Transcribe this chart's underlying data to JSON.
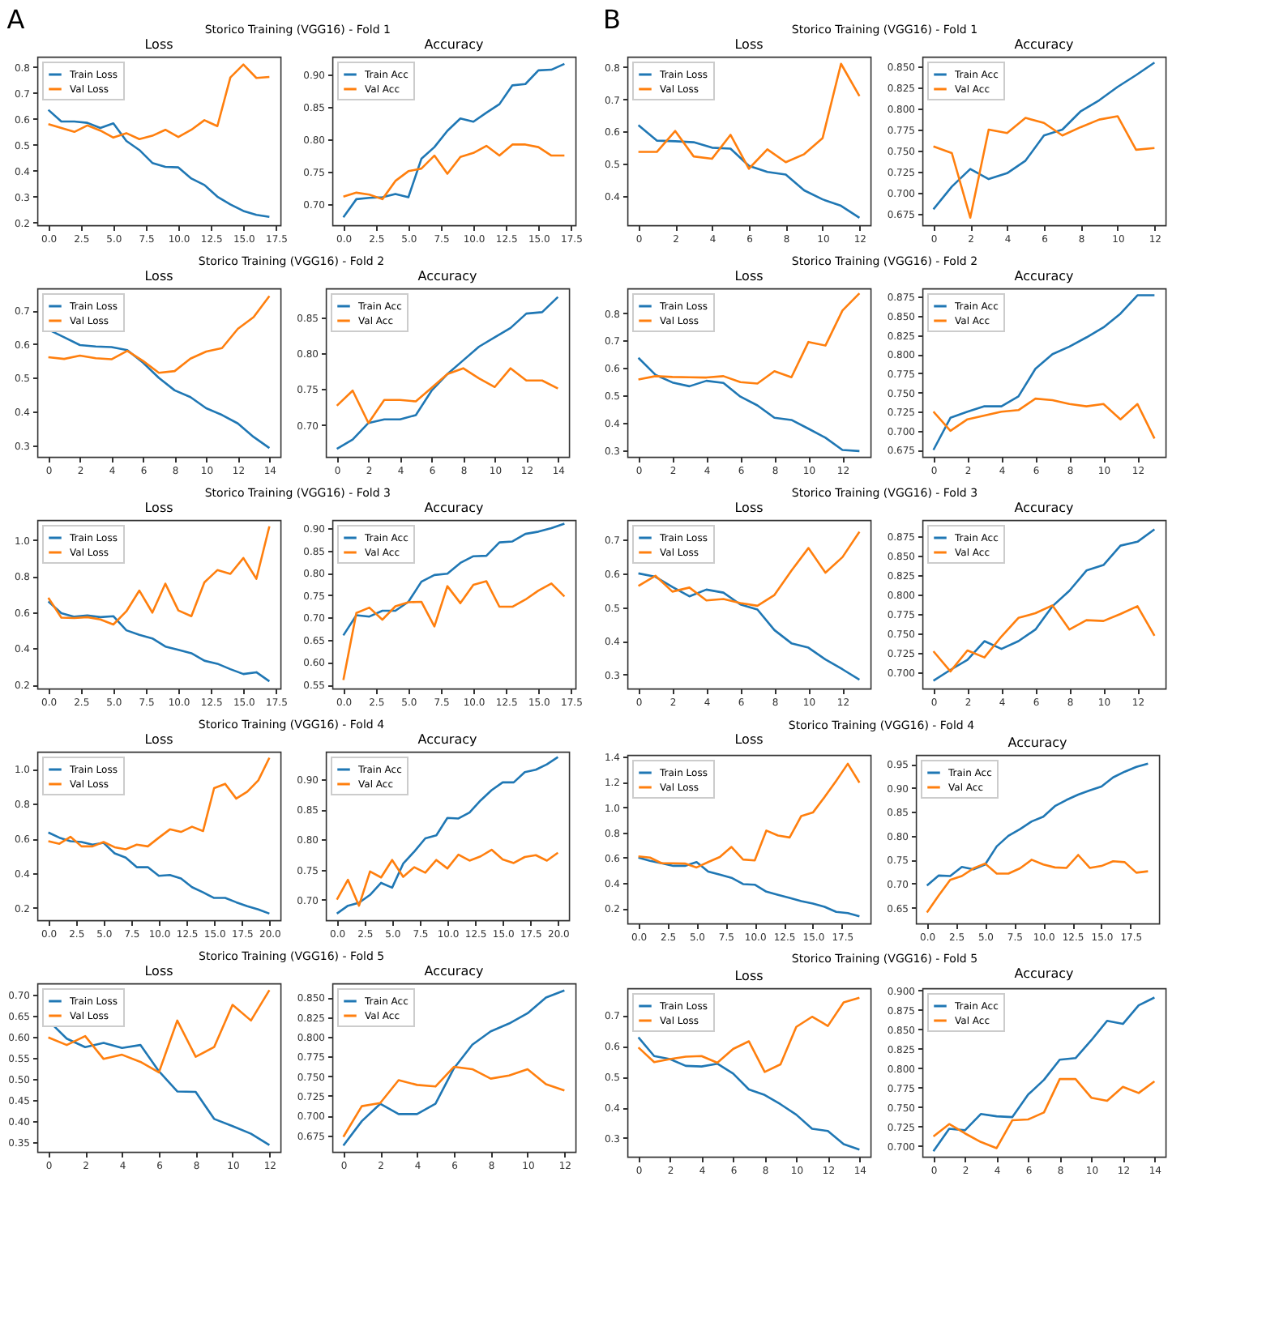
{
  "chart_data": [
    {
      "type": "line",
      "title": "Loss",
      "annotations": [
        "A",
        "Storico Training (VGG16) - Fold 1"
      ],
      "legend": "top left",
      "x": [
        0,
        1,
        2,
        3,
        4,
        5,
        6,
        7,
        8,
        9,
        10,
        11,
        12,
        13,
        14,
        15,
        16,
        17
      ],
      "xlim": [
        -0.85,
        17.85
      ],
      "xticks": [
        {
          "value": 0,
          "label": "0.0"
        },
        2.5,
        {
          "value": 5,
          "label": "5.0"
        },
        7.5,
        {
          "value": 10,
          "label": "10.0"
        },
        12.5,
        {
          "value": 15,
          "label": "15.0"
        },
        17.5
      ],
      "ylim": [
        0.19,
        0.84
      ],
      "yticks": [
        0.2,
        0.3,
        0.4,
        0.5,
        0.6,
        0.7,
        0.8
      ],
      "series": [
        {
          "name": "Train Loss",
          "color": "#1f77b4",
          "values": [
            0.635,
            0.59,
            0.59,
            0.585,
            0.565,
            0.583,
            0.515,
            0.48,
            0.43,
            0.415,
            0.413,
            0.37,
            0.345,
            0.3,
            0.27,
            0.245,
            0.23,
            0.222
          ]
        },
        {
          "name": "Val Loss",
          "color": "#ff7f0e",
          "values": [
            0.58,
            0.565,
            0.55,
            0.575,
            0.555,
            0.528,
            0.545,
            0.522,
            0.535,
            0.558,
            0.53,
            0.558,
            0.595,
            0.572,
            0.76,
            0.81,
            0.758,
            0.762
          ]
        }
      ]
    },
    {
      "type": "line",
      "title": "Accuracy",
      "legend": "top left",
      "x": [
        0,
        1,
        2,
        3,
        4,
        5,
        6,
        7,
        8,
        9,
        10,
        11,
        12,
        13,
        14,
        15,
        16,
        17
      ],
      "xlim": [
        -0.85,
        17.85
      ],
      "xticks": [
        {
          "value": 0,
          "label": "0.0"
        },
        2.5,
        {
          "value": 5,
          "label": "5.0"
        },
        7.5,
        {
          "value": 10,
          "label": "10.0"
        },
        12.5,
        {
          "value": 15,
          "label": "15.0"
        },
        17.5
      ],
      "ylim": [
        0.668,
        0.927
      ],
      "yticks": [
        {
          "value": 0.7,
          "label": "0.70"
        },
        0.75,
        {
          "value": 0.8,
          "label": "0.80"
        },
        0.85,
        {
          "value": 0.9,
          "label": "0.90"
        }
      ],
      "series": [
        {
          "name": "Train Acc",
          "color": "#1f77b4",
          "values": [
            0.68,
            0.708,
            0.71,
            0.711,
            0.716,
            0.711,
            0.77,
            0.788,
            0.813,
            0.832,
            0.827,
            0.841,
            0.854,
            0.883,
            0.885,
            0.906,
            0.907,
            0.916
          ]
        },
        {
          "name": "Val Acc",
          "color": "#ff7f0e",
          "values": [
            0.712,
            0.718,
            0.715,
            0.708,
            0.736,
            0.751,
            0.755,
            0.775,
            0.747,
            0.773,
            0.779,
            0.79,
            0.775,
            0.792,
            0.792,
            0.788,
            0.775,
            0.775
          ]
        }
      ]
    },
    {
      "type": "line",
      "title": "Loss",
      "annotations": [
        "B",
        "Storico Training (VGG16) - Fold 1"
      ],
      "legend": "top left",
      "x": [
        0,
        1,
        2,
        3,
        4,
        5,
        6,
        7,
        8,
        9,
        10,
        11,
        12
      ],
      "xlim": [
        -0.6,
        12.6
      ],
      "xticks": [
        0,
        2,
        4,
        6,
        8,
        10,
        12
      ],
      "ylim": [
        0.31,
        0.832
      ],
      "yticks": [
        0.4,
        0.5,
        0.6,
        0.7,
        0.8
      ],
      "series": [
        {
          "name": "Train Loss",
          "color": "#1f77b4",
          "values": [
            0.62,
            0.572,
            0.57,
            0.567,
            0.55,
            0.547,
            0.494,
            0.475,
            0.467,
            0.418,
            0.39,
            0.37,
            0.333
          ]
        },
        {
          "name": "Val Loss",
          "color": "#ff7f0e",
          "values": [
            0.537,
            0.537,
            0.602,
            0.523,
            0.516,
            0.59,
            0.485,
            0.545,
            0.505,
            0.53,
            0.58,
            0.81,
            0.71
          ]
        }
      ]
    },
    {
      "type": "line",
      "title": "Accuracy",
      "legend": "top left",
      "x": [
        0,
        1,
        2,
        3,
        4,
        5,
        6,
        7,
        8,
        9,
        10,
        11,
        12
      ],
      "xlim": [
        -0.6,
        12.6
      ],
      "xticks": [
        0,
        2,
        4,
        6,
        8,
        10,
        12
      ],
      "ylim": [
        0.661,
        0.862
      ],
      "yticks": [
        0.675,
        {
          "value": 0.7,
          "label": "0.700"
        },
        0.725,
        {
          "value": 0.75,
          "label": "0.750"
        },
        0.775,
        {
          "value": 0.8,
          "label": "0.800"
        },
        0.825,
        {
          "value": 0.85,
          "label": "0.850"
        }
      ],
      "series": [
        {
          "name": "Train Acc",
          "color": "#1f77b4",
          "values": [
            0.68,
            0.707,
            0.728,
            0.716,
            0.723,
            0.738,
            0.768,
            0.775,
            0.797,
            0.81,
            0.826,
            0.84,
            0.855
          ]
        },
        {
          "name": "Val Acc",
          "color": "#ff7f0e",
          "values": [
            0.755,
            0.747,
            0.67,
            0.775,
            0.771,
            0.789,
            0.783,
            0.768,
            0.778,
            0.787,
            0.791,
            0.751,
            0.753
          ]
        }
      ]
    },
    {
      "type": "line",
      "title": "Loss",
      "annotations": [
        "Storico Training (VGG16) - Fold 2"
      ],
      "legend": "top left",
      "x": [
        0,
        1,
        2,
        3,
        4,
        5,
        6,
        7,
        8,
        9,
        10,
        11,
        12,
        13,
        14
      ],
      "xlim": [
        -0.7,
        14.7
      ],
      "xticks": [
        0,
        2,
        4,
        6,
        8,
        10,
        12,
        14
      ],
      "ylim": [
        0.266,
        0.765
      ],
      "yticks": [
        0.3,
        0.4,
        0.5,
        0.6,
        0.7
      ],
      "series": [
        {
          "name": "Train Loss",
          "color": "#1f77b4",
          "values": [
            0.643,
            0.62,
            0.597,
            0.593,
            0.591,
            0.582,
            0.545,
            0.5,
            0.463,
            0.443,
            0.41,
            0.39,
            0.365,
            0.325,
            0.292
          ]
        },
        {
          "name": "Val Loss",
          "color": "#ff7f0e",
          "values": [
            0.561,
            0.556,
            0.566,
            0.558,
            0.555,
            0.58,
            0.55,
            0.515,
            0.52,
            0.557,
            0.578,
            0.588,
            0.645,
            0.68,
            0.742
          ]
        }
      ]
    },
    {
      "type": "line",
      "title": "Accuracy",
      "legend": "top left",
      "x": [
        0,
        1,
        2,
        3,
        4,
        5,
        6,
        7,
        8,
        9,
        10,
        11,
        12,
        13,
        14
      ],
      "xlim": [
        -0.7,
        14.7
      ],
      "xticks": [
        0,
        2,
        4,
        6,
        8,
        10,
        12,
        14
      ],
      "ylim": [
        0.656,
        0.89
      ],
      "yticks": [
        {
          "value": 0.7,
          "label": "0.70"
        },
        0.75,
        {
          "value": 0.8,
          "label": "0.80"
        },
        0.85
      ],
      "series": [
        {
          "name": "Train Acc",
          "color": "#1f77b4",
          "values": [
            0.667,
            0.68,
            0.703,
            0.708,
            0.708,
            0.714,
            0.748,
            0.771,
            0.79,
            0.809,
            0.822,
            0.835,
            0.855,
            0.857,
            0.878
          ]
        },
        {
          "name": "Val Acc",
          "color": "#ff7f0e",
          "values": [
            0.727,
            0.748,
            0.703,
            0.735,
            0.735,
            0.733,
            0.752,
            0.771,
            0.779,
            0.765,
            0.753,
            0.779,
            0.762,
            0.762,
            0.751
          ]
        }
      ]
    },
    {
      "type": "line",
      "title": "Loss",
      "annotations": [
        "Storico Training (VGG16) - Fold 2"
      ],
      "legend": "top left",
      "x": [
        0,
        1,
        2,
        3,
        4,
        5,
        6,
        7,
        8,
        9,
        10,
        11,
        12,
        13
      ],
      "xlim": [
        -0.65,
        13.65
      ],
      "xticks": [
        0,
        2,
        4,
        6,
        8,
        10,
        12
      ],
      "ylim": [
        0.275,
        0.891
      ],
      "yticks": [
        0.3,
        0.4,
        0.5,
        0.6,
        0.7,
        0.8
      ],
      "series": [
        {
          "name": "Train Loss",
          "color": "#1f77b4",
          "values": [
            0.637,
            0.575,
            0.547,
            0.533,
            0.553,
            0.545,
            0.495,
            0.463,
            0.418,
            0.41,
            0.378,
            0.345,
            0.3,
            0.296
          ]
        },
        {
          "name": "Val Loss",
          "color": "#ff7f0e",
          "values": [
            0.558,
            0.57,
            0.567,
            0.566,
            0.565,
            0.57,
            0.548,
            0.543,
            0.588,
            0.566,
            0.695,
            0.682,
            0.81,
            0.873
          ]
        }
      ]
    },
    {
      "type": "line",
      "title": "Accuracy",
      "legend": "top left",
      "x": [
        0,
        1,
        2,
        3,
        4,
        5,
        6,
        7,
        8,
        9,
        10,
        11,
        12,
        13
      ],
      "xlim": [
        -0.65,
        13.65
      ],
      "xticks": [
        0,
        2,
        4,
        6,
        8,
        10,
        12
      ],
      "ylim": [
        0.666,
        0.886
      ],
      "yticks": [
        0.675,
        {
          "value": 0.7,
          "label": "0.700"
        },
        0.725,
        {
          "value": 0.75,
          "label": "0.750"
        },
        0.775,
        {
          "value": 0.8,
          "label": "0.800"
        },
        0.825,
        {
          "value": 0.85,
          "label": "0.850"
        },
        0.875
      ],
      "series": [
        {
          "name": "Train Acc",
          "color": "#1f77b4",
          "values": [
            0.675,
            0.717,
            0.725,
            0.732,
            0.732,
            0.745,
            0.781,
            0.8,
            0.81,
            0.822,
            0.835,
            0.853,
            0.877,
            0.877
          ]
        },
        {
          "name": "Val Acc",
          "color": "#ff7f0e",
          "values": [
            0.725,
            0.7,
            0.715,
            0.72,
            0.725,
            0.727,
            0.742,
            0.74,
            0.735,
            0.732,
            0.735,
            0.715,
            0.735,
            0.69
          ]
        }
      ]
    },
    {
      "type": "line",
      "title": "Loss",
      "annotations": [
        "Storico Training (VGG16) - Fold 3"
      ],
      "legend": "top left",
      "x": [
        0,
        1,
        2,
        3,
        4,
        5,
        6,
        7,
        8,
        9,
        10,
        11,
        12,
        13,
        14,
        15,
        16,
        17
      ],
      "xlim": [
        -0.85,
        17.85
      ],
      "xticks": [
        {
          "value": 0,
          "label": "0.0"
        },
        2.5,
        {
          "value": 5,
          "label": "5.0"
        },
        7.5,
        {
          "value": 10,
          "label": "10.0"
        },
        12.5,
        {
          "value": 15,
          "label": "15.0"
        },
        17.5
      ],
      "ylim": [
        0.178,
        1.11
      ],
      "yticks": [
        0.2,
        0.4,
        0.6,
        0.8,
        {
          "value": 1,
          "label": "1.0"
        }
      ],
      "series": [
        {
          "name": "Train Loss",
          "color": "#1f77b4",
          "values": [
            0.66,
            0.595,
            0.575,
            0.582,
            0.573,
            0.578,
            0.5,
            0.475,
            0.455,
            0.41,
            0.392,
            0.373,
            0.332,
            0.315,
            0.285,
            0.258,
            0.268,
            0.218
          ]
        },
        {
          "name": "Val Loss",
          "color": "#ff7f0e",
          "values": [
            0.68,
            0.57,
            0.568,
            0.573,
            0.56,
            0.532,
            0.605,
            0.72,
            0.598,
            0.758,
            0.61,
            0.578,
            0.765,
            0.833,
            0.812,
            0.9,
            0.785,
            1.075
          ]
        }
      ]
    },
    {
      "type": "line",
      "title": "Accuracy",
      "legend": "top left",
      "x": [
        0,
        1,
        2,
        3,
        4,
        5,
        6,
        7,
        8,
        9,
        10,
        11,
        12,
        13,
        14,
        15,
        16,
        17
      ],
      "xlim": [
        -0.85,
        17.85
      ],
      "xticks": [
        {
          "value": 0,
          "label": "0.0"
        },
        2.5,
        {
          "value": 5,
          "label": "5.0"
        },
        7.5,
        {
          "value": 10,
          "label": "10.0"
        },
        12.5,
        {
          "value": 15,
          "label": "15.0"
        },
        17.5
      ],
      "ylim": [
        0.541,
        0.918
      ],
      "yticks": [
        0.55,
        {
          "value": 0.6,
          "label": "0.60"
        },
        0.65,
        {
          "value": 0.7,
          "label": "0.70"
        },
        0.75,
        {
          "value": 0.8,
          "label": "0.80"
        },
        0.85,
        {
          "value": 0.9,
          "label": "0.90"
        }
      ],
      "series": [
        {
          "name": "Train Acc",
          "color": "#1f77b4",
          "values": [
            0.66,
            0.705,
            0.702,
            0.715,
            0.715,
            0.735,
            0.78,
            0.795,
            0.798,
            0.822,
            0.837,
            0.838,
            0.868,
            0.87,
            0.887,
            0.892,
            0.9,
            0.91
          ]
        },
        {
          "name": "Val Acc",
          "color": "#ff7f0e",
          "values": [
            0.56,
            0.71,
            0.722,
            0.695,
            0.725,
            0.734,
            0.735,
            0.68,
            0.77,
            0.732,
            0.773,
            0.781,
            0.724,
            0.724,
            0.74,
            0.76,
            0.776,
            0.747
          ]
        }
      ]
    },
    {
      "type": "line",
      "title": "Loss",
      "annotations": [
        "Storico Training (VGG16) - Fold 3"
      ],
      "legend": "top left",
      "x": [
        0,
        1,
        2,
        3,
        4,
        5,
        6,
        7,
        8,
        9,
        10,
        11,
        12,
        13
      ],
      "xlim": [
        -0.65,
        13.65
      ],
      "xticks": [
        0,
        2,
        4,
        6,
        8,
        10,
        12
      ],
      "ylim": [
        0.259,
        0.758
      ],
      "yticks": [
        0.3,
        0.4,
        0.5,
        0.6,
        0.7
      ],
      "series": [
        {
          "name": "Train Loss",
          "color": "#1f77b4",
          "values": [
            0.6,
            0.59,
            0.56,
            0.532,
            0.552,
            0.543,
            0.508,
            0.493,
            0.432,
            0.393,
            0.38,
            0.345,
            0.316,
            0.285
          ]
        },
        {
          "name": "Val Loss",
          "color": "#ff7f0e",
          "values": [
            0.563,
            0.593,
            0.546,
            0.558,
            0.52,
            0.524,
            0.512,
            0.504,
            0.536,
            0.608,
            0.675,
            0.602,
            0.648,
            0.723
          ]
        }
      ]
    },
    {
      "type": "line",
      "title": "Accuracy",
      "legend": "top left",
      "x": [
        0,
        1,
        2,
        3,
        4,
        5,
        6,
        7,
        8,
        9,
        10,
        11,
        12,
        13
      ],
      "xlim": [
        -0.65,
        13.65
      ],
      "xticks": [
        0,
        2,
        4,
        6,
        8,
        10,
        12
      ],
      "ylim": [
        0.679,
        0.896
      ],
      "yticks": [
        {
          "value": 0.7,
          "label": "0.700"
        },
        0.725,
        {
          "value": 0.75,
          "label": "0.750"
        },
        0.775,
        {
          "value": 0.8,
          "label": "0.800"
        },
        0.825,
        {
          "value": 0.85,
          "label": "0.850"
        },
        0.875
      ],
      "series": [
        {
          "name": "Train Acc",
          "color": "#1f77b4",
          "values": [
            0.689,
            0.703,
            0.716,
            0.74,
            0.73,
            0.74,
            0.755,
            0.785,
            0.805,
            0.831,
            0.838,
            0.863,
            0.868,
            0.884
          ]
        },
        {
          "name": "Val Acc",
          "color": "#ff7f0e",
          "values": [
            0.727,
            0.701,
            0.728,
            0.719,
            0.746,
            0.77,
            0.776,
            0.786,
            0.755,
            0.767,
            0.766,
            0.775,
            0.785,
            0.747
          ]
        }
      ]
    },
    {
      "type": "line",
      "title": "Loss",
      "annotations": [
        "Storico Training (VGG16) - Fold 4"
      ],
      "legend": "top left",
      "x": [
        0,
        1,
        2,
        3,
        4,
        5,
        6,
        7,
        8,
        9,
        10,
        11,
        12,
        13,
        14,
        15,
        16,
        17,
        18,
        19,
        20
      ],
      "xlim": [
        -1,
        21
      ],
      "xticks": [
        {
          "value": 0,
          "label": "0.0"
        },
        2.5,
        {
          "value": 5,
          "label": "5.0"
        },
        7.5,
        {
          "value": 10,
          "label": "10.0"
        },
        12.5,
        {
          "value": 15,
          "label": "15.0"
        },
        17.5,
        {
          "value": 20,
          "label": "20.0"
        }
      ],
      "ylim": [
        0.13,
        1.1
      ],
      "yticks": [
        0.2,
        0.4,
        0.6,
        0.8,
        {
          "value": 1,
          "label": "1.0"
        }
      ],
      "series": [
        {
          "name": "Train Loss",
          "color": "#1f77b4",
          "values": [
            0.635,
            0.605,
            0.585,
            0.58,
            0.565,
            0.575,
            0.515,
            0.49,
            0.435,
            0.435,
            0.385,
            0.39,
            0.37,
            0.32,
            0.29,
            0.258,
            0.258,
            0.233,
            0.21,
            0.192,
            0.168
          ]
        },
        {
          "name": "Val Loss",
          "color": "#ff7f0e",
          "values": [
            0.585,
            0.57,
            0.61,
            0.555,
            0.555,
            0.58,
            0.55,
            0.538,
            0.565,
            0.555,
            0.605,
            0.653,
            0.638,
            0.668,
            0.643,
            0.89,
            0.915,
            0.83,
            0.87,
            0.935,
            1.065
          ]
        }
      ]
    },
    {
      "type": "line",
      "title": "Accuracy",
      "legend": "top left",
      "x": [
        0,
        1,
        2,
        3,
        4,
        5,
        6,
        7,
        8,
        9,
        10,
        11,
        12,
        13,
        14,
        15,
        16,
        17,
        18,
        19,
        20
      ],
      "xlim": [
        -1,
        21
      ],
      "xticks": [
        {
          "value": 0,
          "label": "0.0"
        },
        2.5,
        {
          "value": 5,
          "label": "5.0"
        },
        7.5,
        {
          "value": 10,
          "label": "10.0"
        },
        12.5,
        {
          "value": 15,
          "label": "15.0"
        },
        17.5,
        {
          "value": 20,
          "label": "20.0"
        }
      ],
      "ylim": [
        0.666,
        0.946
      ],
      "yticks": [
        {
          "value": 0.7,
          "label": "0.70"
        },
        0.75,
        {
          "value": 0.8,
          "label": "0.80"
        },
        0.85,
        {
          "value": 0.9,
          "label": "0.90"
        }
      ],
      "series": [
        {
          "name": "Train Acc",
          "color": "#1f77b4",
          "values": [
            0.677,
            0.69,
            0.695,
            0.708,
            0.728,
            0.72,
            0.76,
            0.78,
            0.802,
            0.807,
            0.836,
            0.835,
            0.845,
            0.865,
            0.882,
            0.895,
            0.895,
            0.912,
            0.916,
            0.925,
            0.937
          ]
        },
        {
          "name": "Val Acc",
          "color": "#ff7f0e",
          "values": [
            0.7,
            0.733,
            0.69,
            0.747,
            0.737,
            0.766,
            0.738,
            0.754,
            0.745,
            0.766,
            0.752,
            0.775,
            0.765,
            0.772,
            0.783,
            0.767,
            0.761,
            0.771,
            0.774,
            0.765,
            0.778
          ]
        }
      ]
    },
    {
      "type": "line",
      "title": "Loss",
      "annotations": [
        "Storico Training (VGG16) - Fold 4"
      ],
      "legend": "top left",
      "x": [
        0,
        1,
        2,
        3,
        4,
        5,
        6,
        7,
        8,
        9,
        10,
        11,
        12,
        13,
        14,
        15,
        16,
        17,
        18,
        19
      ],
      "xlim": [
        -0.95,
        19.95
      ],
      "xticks": [
        {
          "value": 0,
          "label": "0.0"
        },
        2.5,
        {
          "value": 5,
          "label": "5.0"
        },
        7.5,
        {
          "value": 10,
          "label": "10.0"
        },
        12.5,
        {
          "value": 15,
          "label": "15.0"
        },
        17.5
      ],
      "ylim": [
        0.078,
        1.415
      ],
      "yticks": [
        0.2,
        0.4,
        0.6,
        0.8,
        {
          "value": 1,
          "label": "1.0"
        },
        1.2,
        1.4
      ],
      "series": [
        {
          "name": "Train Loss",
          "color": "#1f77b4",
          "values": [
            0.6,
            0.575,
            0.555,
            0.535,
            0.535,
            0.565,
            0.49,
            0.465,
            0.44,
            0.39,
            0.385,
            0.33,
            0.305,
            0.28,
            0.255,
            0.235,
            0.21,
            0.17,
            0.16,
            0.135
          ]
        },
        {
          "name": "Val Loss",
          "color": "#ff7f0e",
          "values": [
            0.61,
            0.6,
            0.555,
            0.555,
            0.553,
            0.522,
            0.565,
            0.605,
            0.685,
            0.585,
            0.578,
            0.815,
            0.775,
            0.76,
            0.93,
            0.958,
            1.08,
            1.21,
            1.345,
            1.195
          ]
        }
      ]
    },
    {
      "type": "line",
      "title": "Accuracy",
      "legend": "top left",
      "x": [
        0,
        1,
        2,
        3,
        4,
        5,
        6,
        7,
        8,
        9,
        10,
        11,
        12,
        13,
        14,
        15,
        16,
        17,
        18,
        19
      ],
      "xlim": [
        -0.95,
        19.95
      ],
      "xticks": [
        {
          "value": 0,
          "label": "0.0"
        },
        2.5,
        {
          "value": 5,
          "label": "5.0"
        },
        7.5,
        {
          "value": 10,
          "label": "10.0"
        },
        12.5,
        {
          "value": 15,
          "label": "15.0"
        },
        17.5
      ],
      "ylim": [
        0.617,
        0.969
      ],
      "yticks": [
        0.65,
        {
          "value": 0.7,
          "label": "0.70"
        },
        0.75,
        {
          "value": 0.8,
          "label": "0.80"
        },
        0.85,
        {
          "value": 0.9,
          "label": "0.90"
        },
        0.95
      ],
      "series": [
        {
          "name": "Train Acc",
          "color": "#1f77b4",
          "values": [
            0.696,
            0.717,
            0.716,
            0.735,
            0.73,
            0.74,
            0.778,
            0.8,
            0.814,
            0.83,
            0.84,
            0.862,
            0.875,
            0.886,
            0.895,
            0.903,
            0.922,
            0.934,
            0.944,
            0.951
          ]
        },
        {
          "name": "Val Acc",
          "color": "#ff7f0e",
          "values": [
            0.64,
            0.675,
            0.708,
            0.716,
            0.732,
            0.742,
            0.721,
            0.721,
            0.732,
            0.75,
            0.74,
            0.734,
            0.733,
            0.76,
            0.733,
            0.737,
            0.747,
            0.745,
            0.723,
            0.726
          ]
        }
      ]
    },
    {
      "type": "line",
      "title": "Loss",
      "annotations": [
        "Storico Training (VGG16) - Fold 5"
      ],
      "legend": "top left",
      "x": [
        0,
        1,
        2,
        3,
        4,
        5,
        6,
        7,
        8,
        9,
        10,
        11,
        12
      ],
      "xlim": [
        -0.6,
        12.6
      ],
      "xticks": [
        0,
        2,
        4,
        6,
        8,
        10,
        12
      ],
      "ylim": [
        0.327,
        0.726
      ],
      "yticks": [
        0.35,
        {
          "value": 0.4,
          "label": "0.40"
        },
        0.45,
        {
          "value": 0.5,
          "label": "0.50"
        },
        0.55,
        {
          "value": 0.6,
          "label": "0.60"
        },
        0.65,
        {
          "value": 0.7,
          "label": "0.70"
        }
      ],
      "series": [
        {
          "name": "Train Loss",
          "color": "#1f77b4",
          "values": [
            0.638,
            0.595,
            0.575,
            0.585,
            0.573,
            0.58,
            0.518,
            0.47,
            0.469,
            0.405,
            0.388,
            0.37,
            0.343
          ]
        },
        {
          "name": "Val Loss",
          "color": "#ff7f0e",
          "values": [
            0.598,
            0.58,
            0.601,
            0.547,
            0.557,
            0.54,
            0.515,
            0.638,
            0.552,
            0.575,
            0.675,
            0.638,
            0.71
          ]
        }
      ]
    },
    {
      "type": "line",
      "title": "Accuracy",
      "legend": "top left",
      "x": [
        0,
        1,
        2,
        3,
        4,
        5,
        6,
        7,
        8,
        9,
        10,
        11,
        12
      ],
      "xlim": [
        -0.6,
        12.6
      ],
      "xticks": [
        0,
        2,
        4,
        6,
        8,
        10,
        12
      ],
      "ylim": [
        0.654,
        0.868
      ],
      "yticks": [
        0.675,
        {
          "value": 0.7,
          "label": "0.700"
        },
        0.725,
        {
          "value": 0.75,
          "label": "0.750"
        },
        0.775,
        {
          "value": 0.8,
          "label": "0.800"
        },
        0.825,
        {
          "value": 0.85,
          "label": "0.850"
        }
      ],
      "series": [
        {
          "name": "Train Acc",
          "color": "#1f77b4",
          "values": [
            0.662,
            0.693,
            0.715,
            0.702,
            0.702,
            0.715,
            0.76,
            0.79,
            0.807,
            0.817,
            0.83,
            0.85,
            0.859
          ]
        },
        {
          "name": "Val Acc",
          "color": "#ff7f0e",
          "values": [
            0.673,
            0.712,
            0.716,
            0.745,
            0.739,
            0.737,
            0.762,
            0.759,
            0.747,
            0.751,
            0.759,
            0.74,
            0.732
          ]
        }
      ]
    },
    {
      "type": "line",
      "title": "Loss",
      "annotations": [
        "Storico Training (VGG16) - Fold 5"
      ],
      "legend": "top left",
      "x": [
        0,
        1,
        2,
        3,
        4,
        5,
        6,
        7,
        8,
        9,
        10,
        11,
        12,
        13,
        14
      ],
      "xlim": [
        -0.7,
        14.7
      ],
      "xticks": [
        0,
        2,
        4,
        6,
        8,
        10,
        12,
        14
      ],
      "ylim": [
        0.239,
        0.788
      ],
      "yticks": [
        0.3,
        0.4,
        0.5,
        0.6,
        0.7
      ],
      "series": [
        {
          "name": "Train Loss",
          "color": "#1f77b4",
          "values": [
            0.628,
            0.567,
            0.557,
            0.535,
            0.533,
            0.542,
            0.51,
            0.458,
            0.44,
            0.41,
            0.376,
            0.33,
            0.323,
            0.28,
            0.262
          ]
        },
        {
          "name": "Val Loss",
          "color": "#ff7f0e",
          "values": [
            0.595,
            0.547,
            0.557,
            0.565,
            0.567,
            0.545,
            0.59,
            0.615,
            0.515,
            0.54,
            0.662,
            0.695,
            0.665,
            0.742,
            0.757
          ]
        }
      ]
    },
    {
      "type": "line",
      "title": "Accuracy",
      "legend": "top left",
      "x": [
        0,
        1,
        2,
        3,
        4,
        5,
        6,
        7,
        8,
        9,
        10,
        11,
        12,
        13,
        14
      ],
      "xlim": [
        -0.7,
        14.7
      ],
      "xticks": [
        0,
        2,
        4,
        6,
        8,
        10,
        12,
        14
      ],
      "ylim": [
        0.686,
        0.903
      ],
      "yticks": [
        {
          "value": 0.7,
          "label": "0.700"
        },
        0.725,
        {
          "value": 0.75,
          "label": "0.750"
        },
        0.775,
        {
          "value": 0.8,
          "label": "0.800"
        },
        0.825,
        {
          "value": 0.85,
          "label": "0.850"
        },
        0.875,
        {
          "value": 0.9,
          "label": "0.900"
        }
      ],
      "series": [
        {
          "name": "Train Acc",
          "color": "#1f77b4",
          "values": [
            0.693,
            0.722,
            0.72,
            0.741,
            0.738,
            0.737,
            0.766,
            0.785,
            0.811,
            0.813,
            0.836,
            0.861,
            0.857,
            0.881,
            0.891
          ]
        },
        {
          "name": "Val Acc",
          "color": "#ff7f0e",
          "values": [
            0.712,
            0.728,
            0.716,
            0.705,
            0.697,
            0.733,
            0.734,
            0.743,
            0.786,
            0.786,
            0.762,
            0.758,
            0.776,
            0.768,
            0.783
          ]
        }
      ]
    }
  ]
}
